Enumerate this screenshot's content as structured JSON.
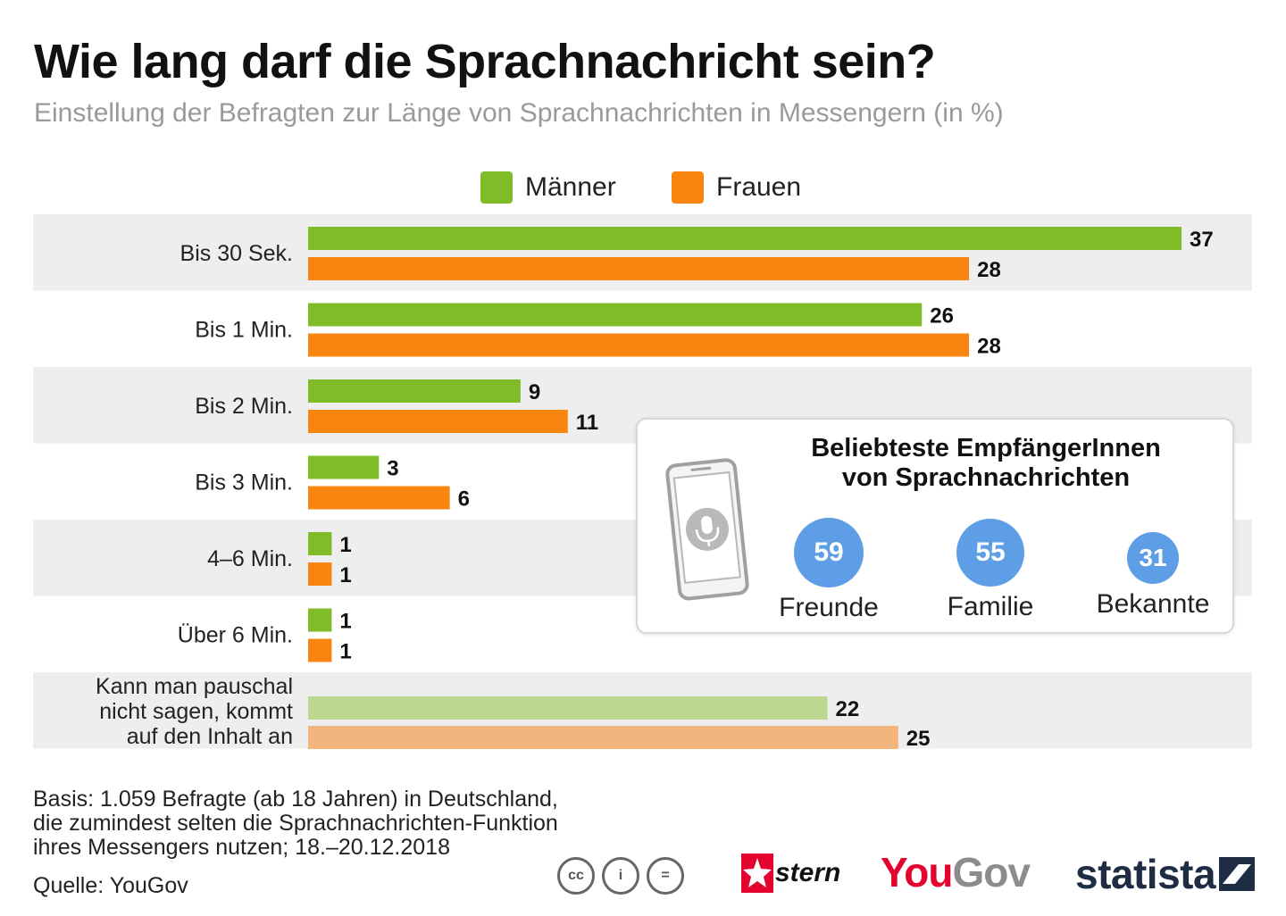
{
  "chart_data": {
    "type": "bar",
    "orientation": "horizontal",
    "title": "Wie lang darf die Sprachnachricht sein?",
    "subtitle": "Einstellung der Befragten zur Länge von Sprachnachrichten in Messengern (in %)",
    "categories": [
      "Bis 30 Sek.",
      "Bis 1 Min.",
      "Bis 2 Min.",
      "Bis 3 Min.",
      "4–6 Min.",
      "Über 6 Min.",
      "Kann man pauschal nicht sagen, kommt auf den Inhalt an"
    ],
    "category_lines": [
      [
        "Bis 30 Sek."
      ],
      [
        "Bis 1 Min."
      ],
      [
        "Bis 2 Min."
      ],
      [
        "Bis 3 Min."
      ],
      [
        "4–6 Min."
      ],
      [
        "Über 6 Min."
      ],
      [
        "Kann man pauschal",
        "nicht sagen, kommt",
        "auf den Inhalt an"
      ]
    ],
    "series": [
      {
        "name": "Männer",
        "values": [
          37,
          26,
          9,
          3,
          1,
          1,
          22
        ],
        "color": "#7fbc28",
        "last_color": "#bcd890"
      },
      {
        "name": "Frauen",
        "values": [
          28,
          28,
          11,
          6,
          1,
          1,
          25
        ],
        "color": "#f7850f",
        "last_color": "#f2b57d"
      }
    ],
    "xlim": [
      0,
      37
    ],
    "legend_position": "top-center",
    "row_band_color": "#eeeeee"
  },
  "inset": {
    "title_lines": [
      "Beliebteste EmpfängerInnen",
      "von Sprachnachrichten"
    ],
    "icon": "smartphone-microphone-icon",
    "circle_color": "#5e9ee6",
    "items": [
      {
        "value": "59",
        "label": "Freunde"
      },
      {
        "value": "55",
        "label": "Familie"
      },
      {
        "value": "31",
        "label": "Bekannte"
      }
    ]
  },
  "footer": {
    "basis_lines": [
      "Basis: 1.059 Befragte (ab 18 Jahren) in Deutschland,",
      "die zumindest selten die Sprachnachrichten-Funktion",
      "ihres Messengers nutzen; 18.–20.12.2018"
    ],
    "source": "Quelle: YouGov",
    "license_icons": [
      "cc-icon",
      "attribution-icon",
      "no-derivatives-icon"
    ],
    "license_glyphs": [
      "cc",
      "i",
      "="
    ],
    "logos": {
      "stern": "stern",
      "yougov_you": "You",
      "yougov_gov": "Gov",
      "statista": "statista"
    }
  }
}
